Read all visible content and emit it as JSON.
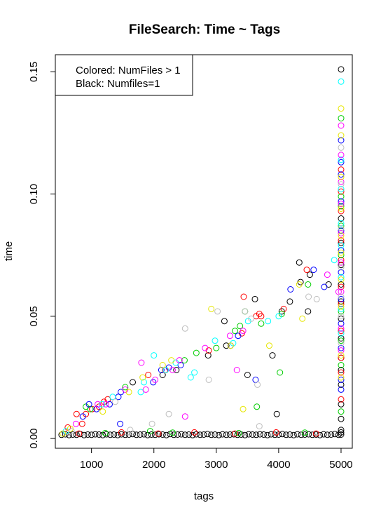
{
  "chart_data": {
    "type": "scatter",
    "title": "FileSearch: Time ~ Tags",
    "xlabel": "tags",
    "ylabel": "time",
    "xlim": [
      420,
      5180
    ],
    "ylim": [
      -0.004,
      0.157
    ],
    "xticks": [
      1000,
      2000,
      3000,
      4000,
      5000
    ],
    "xtick_labels": [
      "1000",
      "2000",
      "3000",
      "4000",
      "5000"
    ],
    "yticks": [
      0.0,
      0.05,
      0.1,
      0.15
    ],
    "ytick_labels": [
      "0.00",
      "0.05",
      "0.10",
      "0.15"
    ],
    "grid": false,
    "legend_position": "top-left",
    "legend": [
      "Colored: NumFiles > 1",
      "Black: Numfiles=1"
    ],
    "marker": "open-circle",
    "palette": {
      "black": "#000000",
      "red": "#ff0000",
      "green": "#00cd00",
      "blue": "#0000ff",
      "cyan": "#00ffff",
      "magenta": "#ff00ff",
      "yellow": "#e6e600",
      "gray": "#bebebe"
    },
    "series": [
      {
        "color": "black",
        "points": [
          [
            520,
            0.0015
          ],
          [
            580,
            0.0017
          ],
          [
            640,
            0.0014
          ],
          [
            700,
            0.0016
          ],
          [
            760,
            0.0015
          ],
          [
            820,
            0.0018
          ],
          [
            880,
            0.0014
          ],
          [
            940,
            0.0016
          ],
          [
            1000,
            0.0015
          ],
          [
            1060,
            0.0017
          ],
          [
            1120,
            0.0016
          ],
          [
            1180,
            0.0014
          ],
          [
            1240,
            0.0017
          ],
          [
            1300,
            0.0015
          ],
          [
            1360,
            0.0016
          ],
          [
            1420,
            0.0014
          ],
          [
            1480,
            0.0017
          ],
          [
            1540,
            0.0015
          ],
          [
            1600,
            0.0016
          ],
          [
            1660,
            0.0018
          ],
          [
            1720,
            0.0015
          ],
          [
            1780,
            0.0016
          ],
          [
            1840,
            0.0017
          ],
          [
            1900,
            0.0014
          ],
          [
            1960,
            0.0016
          ],
          [
            2020,
            0.0015
          ],
          [
            2080,
            0.0017
          ],
          [
            2140,
            0.0016
          ],
          [
            2200,
            0.0014
          ],
          [
            2260,
            0.0018
          ],
          [
            2320,
            0.0015
          ],
          [
            2380,
            0.0016
          ],
          [
            2440,
            0.0017
          ],
          [
            2500,
            0.0015
          ],
          [
            2560,
            0.0016
          ],
          [
            2620,
            0.0014
          ],
          [
            2680,
            0.0017
          ],
          [
            2740,
            0.0015
          ],
          [
            2800,
            0.0016
          ],
          [
            2860,
            0.0018
          ],
          [
            2920,
            0.0015
          ],
          [
            2980,
            0.0016
          ],
          [
            3040,
            0.0014
          ],
          [
            3100,
            0.0017
          ],
          [
            3160,
            0.0015
          ],
          [
            3220,
            0.0016
          ],
          [
            3280,
            0.0017
          ],
          [
            3340,
            0.0015
          ],
          [
            3400,
            0.0016
          ],
          [
            3460,
            0.0014
          ],
          [
            3520,
            0.0017
          ],
          [
            3580,
            0.0016
          ],
          [
            3640,
            0.0015
          ],
          [
            3700,
            0.0017
          ],
          [
            3760,
            0.0016
          ],
          [
            3820,
            0.0014
          ],
          [
            3880,
            0.0017
          ],
          [
            3940,
            0.0015
          ],
          [
            4000,
            0.0016
          ],
          [
            4060,
            0.0018
          ],
          [
            4120,
            0.0015
          ],
          [
            4180,
            0.0016
          ],
          [
            4240,
            0.0014
          ],
          [
            4300,
            0.0017
          ],
          [
            4360,
            0.0015
          ],
          [
            4420,
            0.0016
          ],
          [
            4480,
            0.0017
          ],
          [
            4540,
            0.0015
          ],
          [
            4600,
            0.0016
          ],
          [
            4660,
            0.0014
          ],
          [
            4720,
            0.0017
          ],
          [
            4780,
            0.0015
          ],
          [
            4840,
            0.0016
          ],
          [
            4900,
            0.0018
          ],
          [
            4960,
            0.0015
          ],
          [
            5000,
            0.0016
          ],
          [
            5000,
            0.0025
          ],
          [
            5000,
            0.0035
          ],
          [
            1660,
            0.023
          ],
          [
            2140,
            0.026
          ],
          [
            2360,
            0.028
          ],
          [
            2870,
            0.034
          ],
          [
            3130,
            0.048
          ],
          [
            3160,
            0.038
          ],
          [
            3500,
            0.026
          ],
          [
            3620,
            0.057
          ],
          [
            3900,
            0.034
          ],
          [
            3970,
            0.01
          ],
          [
            4050,
            0.052
          ],
          [
            4180,
            0.056
          ],
          [
            4330,
            0.072
          ],
          [
            4350,
            0.064
          ],
          [
            4470,
            0.052
          ],
          [
            4500,
            0.067
          ],
          [
            4800,
            0.063
          ],
          [
            5000,
            0.151
          ],
          [
            5000,
            0.09
          ],
          [
            5000,
            0.08
          ],
          [
            5000,
            0.071
          ],
          [
            5000,
            0.063
          ],
          [
            5000,
            0.056
          ],
          [
            5000,
            0.049
          ],
          [
            5000,
            0.041
          ],
          [
            5000,
            0.033
          ],
          [
            5000,
            0.028
          ],
          [
            5000,
            0.022
          ],
          [
            5000,
            0.014
          ],
          [
            5000,
            0.008
          ]
        ]
      },
      {
        "color": "red",
        "points": [
          [
            620,
            0.0045
          ],
          [
            760,
            0.01
          ],
          [
            850,
            0.006
          ],
          [
            910,
            0.01
          ],
          [
            1010,
            0.012
          ],
          [
            1120,
            0.013
          ],
          [
            1200,
            0.015
          ],
          [
            1260,
            0.016
          ],
          [
            1910,
            0.026
          ],
          [
            2180,
            0.028
          ],
          [
            2880,
            0.036
          ],
          [
            3410,
            0.043
          ],
          [
            3440,
            0.058
          ],
          [
            3640,
            0.05
          ],
          [
            3690,
            0.051
          ],
          [
            3720,
            0.05
          ],
          [
            4080,
            0.053
          ],
          [
            4450,
            0.069
          ],
          [
            5000,
            0.11
          ],
          [
            5000,
            0.101
          ],
          [
            5000,
            0.093
          ],
          [
            5000,
            0.081
          ],
          [
            5000,
            0.073
          ],
          [
            5000,
            0.062
          ],
          [
            5000,
            0.055
          ],
          [
            5000,
            0.044
          ],
          [
            5000,
            0.033
          ],
          [
            5000,
            0.027
          ],
          [
            5000,
            0.016
          ],
          [
            800,
            0.002
          ],
          [
            1480,
            0.0025
          ],
          [
            2070,
            0.002
          ],
          [
            2650,
            0.0025
          ],
          [
            3300,
            0.002
          ],
          [
            3960,
            0.0025
          ],
          [
            4600,
            0.002
          ]
        ]
      },
      {
        "color": "green",
        "points": [
          [
            910,
            0.013
          ],
          [
            980,
            0.012
          ],
          [
            1540,
            0.021
          ],
          [
            1940,
            0.003
          ],
          [
            2490,
            0.032
          ],
          [
            2680,
            0.035
          ],
          [
            3000,
            0.037
          ],
          [
            3300,
            0.044
          ],
          [
            3380,
            0.046
          ],
          [
            3460,
            0.052
          ],
          [
            3650,
            0.013
          ],
          [
            3720,
            0.047
          ],
          [
            4020,
            0.027
          ],
          [
            4050,
            0.051
          ],
          [
            4470,
            0.063
          ],
          [
            5000,
            0.131
          ],
          [
            5000,
            0.099
          ],
          [
            5000,
            0.095
          ],
          [
            5000,
            0.087
          ],
          [
            5000,
            0.075
          ],
          [
            5000,
            0.052
          ],
          [
            5000,
            0.04
          ],
          [
            5000,
            0.03
          ],
          [
            5000,
            0.011
          ],
          [
            1220,
            0.0022
          ],
          [
            2300,
            0.0024
          ],
          [
            3360,
            0.0022
          ],
          [
            4420,
            0.0024
          ]
        ]
      },
      {
        "color": "blue",
        "points": [
          [
            860,
            0.009
          ],
          [
            960,
            0.014
          ],
          [
            1080,
            0.012
          ],
          [
            1290,
            0.014
          ],
          [
            1430,
            0.017
          ],
          [
            1460,
            0.006
          ],
          [
            1470,
            0.019
          ],
          [
            1990,
            0.023
          ],
          [
            2120,
            0.028
          ],
          [
            2240,
            0.029
          ],
          [
            2430,
            0.03
          ],
          [
            3230,
            0.038
          ],
          [
            3350,
            0.042
          ],
          [
            3630,
            0.024
          ],
          [
            4190,
            0.061
          ],
          [
            4560,
            0.069
          ],
          [
            4730,
            0.062
          ],
          [
            5000,
            0.122
          ],
          [
            5000,
            0.113
          ],
          [
            5000,
            0.108
          ],
          [
            5000,
            0.097
          ],
          [
            5000,
            0.085
          ],
          [
            5000,
            0.077
          ],
          [
            5000,
            0.068
          ],
          [
            5000,
            0.057
          ],
          [
            5000,
            0.047
          ],
          [
            5000,
            0.037
          ],
          [
            5000,
            0.024
          ],
          [
            5000,
            0.02
          ]
        ]
      },
      {
        "color": "cyan",
        "points": [
          [
            590,
            0.003
          ],
          [
            1170,
            0.014
          ],
          [
            1340,
            0.017
          ],
          [
            1790,
            0.019
          ],
          [
            1840,
            0.023
          ],
          [
            2000,
            0.034
          ],
          [
            2190,
            0.028
          ],
          [
            2350,
            0.031
          ],
          [
            2590,
            0.025
          ],
          [
            2650,
            0.027
          ],
          [
            2980,
            0.04
          ],
          [
            3270,
            0.039
          ],
          [
            3510,
            0.048
          ],
          [
            3830,
            0.048
          ],
          [
            4000,
            0.05
          ],
          [
            4890,
            0.073
          ],
          [
            5000,
            0.146
          ],
          [
            5000,
            0.114
          ],
          [
            5000,
            0.102
          ],
          [
            5000,
            0.088
          ],
          [
            5000,
            0.079
          ],
          [
            5000,
            0.066
          ],
          [
            5000,
            0.053
          ],
          [
            5000,
            0.043
          ]
        ]
      },
      {
        "color": "magenta",
        "points": [
          [
            750,
            0.006
          ],
          [
            1100,
            0.014
          ],
          [
            1230,
            0.014
          ],
          [
            1540,
            0.02
          ],
          [
            1800,
            0.031
          ],
          [
            1870,
            0.02
          ],
          [
            2020,
            0.024
          ],
          [
            2300,
            0.028
          ],
          [
            2410,
            0.032
          ],
          [
            2500,
            0.009
          ],
          [
            2820,
            0.037
          ],
          [
            3220,
            0.042
          ],
          [
            3330,
            0.028
          ],
          [
            3430,
            0.044
          ],
          [
            4780,
            0.067
          ],
          [
            4960,
            0.06
          ],
          [
            5000,
            0.128
          ],
          [
            5000,
            0.116
          ],
          [
            5000,
            0.105
          ],
          [
            5000,
            0.096
          ],
          [
            5000,
            0.084
          ],
          [
            5000,
            0.072
          ],
          [
            5000,
            0.06
          ],
          [
            5000,
            0.045
          ],
          [
            5000,
            0.036
          ]
        ]
      },
      {
        "color": "yellow",
        "points": [
          [
            540,
            0.002
          ],
          [
            660,
            0.004
          ],
          [
            1180,
            0.011
          ],
          [
            1600,
            0.019
          ],
          [
            1820,
            0.025
          ],
          [
            2140,
            0.03
          ],
          [
            2280,
            0.032
          ],
          [
            2920,
            0.053
          ],
          [
            3230,
            0.038
          ],
          [
            3430,
            0.012
          ],
          [
            3850,
            0.038
          ],
          [
            4330,
            0.063
          ],
          [
            4380,
            0.049
          ],
          [
            5000,
            0.135
          ],
          [
            5000,
            0.124
          ],
          [
            5000,
            0.107
          ],
          [
            5000,
            0.094
          ],
          [
            5000,
            0.083
          ],
          [
            5000,
            0.076
          ],
          [
            5000,
            0.065
          ],
          [
            5000,
            0.054
          ],
          [
            5000,
            0.034
          ],
          [
            5000,
            0.025
          ]
        ]
      },
      {
        "color": "gray",
        "points": [
          [
            680,
            0.003
          ],
          [
            1380,
            0.015
          ],
          [
            1620,
            0.0035
          ],
          [
            1970,
            0.006
          ],
          [
            2240,
            0.01
          ],
          [
            2500,
            0.045
          ],
          [
            2880,
            0.024
          ],
          [
            3020,
            0.052
          ],
          [
            3460,
            0.052
          ],
          [
            3560,
            0.049
          ],
          [
            3660,
            0.022
          ],
          [
            3690,
            0.005
          ],
          [
            4480,
            0.058
          ],
          [
            4610,
            0.057
          ],
          [
            5000,
            0.119
          ],
          [
            5000,
            0.104
          ],
          [
            5000,
            0.086
          ],
          [
            5000,
            0.07
          ],
          [
            5000,
            0.058
          ],
          [
            5000,
            0.05
          ],
          [
            5000,
            0.039
          ]
        ]
      }
    ]
  }
}
